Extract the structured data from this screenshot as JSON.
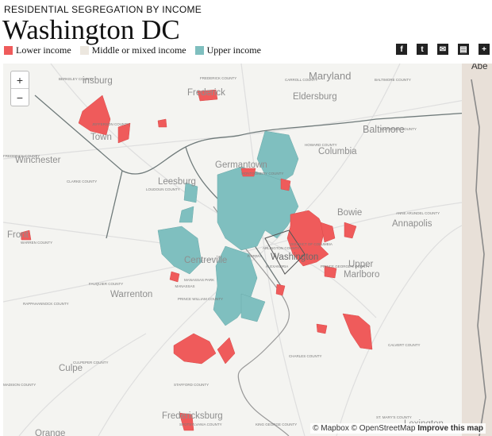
{
  "header": {
    "kicker": "RESIDENTIAL SEGREGATION BY INCOME",
    "title": "Washington DC"
  },
  "legend": [
    {
      "label": "Lower income",
      "color": "#ef5b5b"
    },
    {
      "label": "Middle or mixed income",
      "color": "#ece7df"
    },
    {
      "label": "Upper income",
      "color": "#7fbfbf"
    }
  ],
  "share": [
    "facebook-icon",
    "twitter-icon",
    "email-icon",
    "print-icon",
    "add-icon"
  ],
  "share_glyphs": [
    "f",
    "t",
    "✉",
    "▤",
    "+"
  ],
  "map": {
    "zoom_in": "+",
    "zoom_out": "−",
    "places": {
      "maryland": "Maryland",
      "frederick": "Frederick",
      "eldersburg": "Eldersburg",
      "baltimore": "Baltimore",
      "columbia": "Columbia",
      "germantown": "Germantown",
      "winchester": "Winchester",
      "leesburg": "Leesburg",
      "bowie": "Bowie",
      "annapolis": "Annapolis",
      "front_royal": "Front",
      "centreville": "Centreville",
      "warrenton": "Warrenton",
      "upper_marlboro_1": "Upper",
      "upper_marlboro_2": "Marlboro",
      "culpeper": "Culpe",
      "fredericksburg": "Fredericksburg",
      "orange": "Orange",
      "lexington": "Lexington",
      "aberdeen": "Abe",
      "martinsburg": "insburg",
      "town": "Town",
      "washington": "Washington"
    },
    "counties": {
      "berkeley": "BERKELEY COUNTY",
      "frederick_md": "FREDERICK COUNTY",
      "carroll": "CARROLL COUNTY",
      "baltimore_co": "BALTIMORE COUNTY",
      "howard": "HOWARD COUNTY",
      "montgomery": "MONTGOMERY COUNTY",
      "jefferson": "JEFFERSON COUNTY",
      "frederick_va": "FREDERICK COUNTY",
      "clarke": "CLARKE COUNTY",
      "loudoun": "LOUDOUN COUNTY",
      "anne_arundel": "ANNE ARUNDEL COUNTY",
      "district": "DISTRICT OF COLUMBIA",
      "prince_georges": "PRINCE GEORGE'S COUNTY",
      "fairfax": "FAIRFAX",
      "arlington": "ARLINGTON COUNTY",
      "alexandria": "ALEXANDRIA",
      "fauquier": "FAUQUIER COUNTY",
      "manassas_park": "MANASSAS PARK",
      "manassas": "MANASSAS",
      "prince_william": "PRINCE WILLIAM COUNTY",
      "rappahannock": "RAPPAHANNOCK COUNTY",
      "warren": "WARREN COUNTY",
      "culpeper": "CULPEPER COUNTY",
      "stafford": "STAFFORD COUNTY",
      "charles": "CHARLES COUNTY",
      "calvert": "CALVERT COUNTY",
      "st_marys": "ST. MARY'S COUNTY",
      "madison": "MADISON COUNTY",
      "king_george": "KING GEORGE COUNTY",
      "spotsylvania": "SPOTSYLVANIA COUNTY"
    },
    "attribution": {
      "mapbox": "© Mapbox",
      "osm": "© OpenStreetMap",
      "improve": "Improve this map"
    }
  }
}
